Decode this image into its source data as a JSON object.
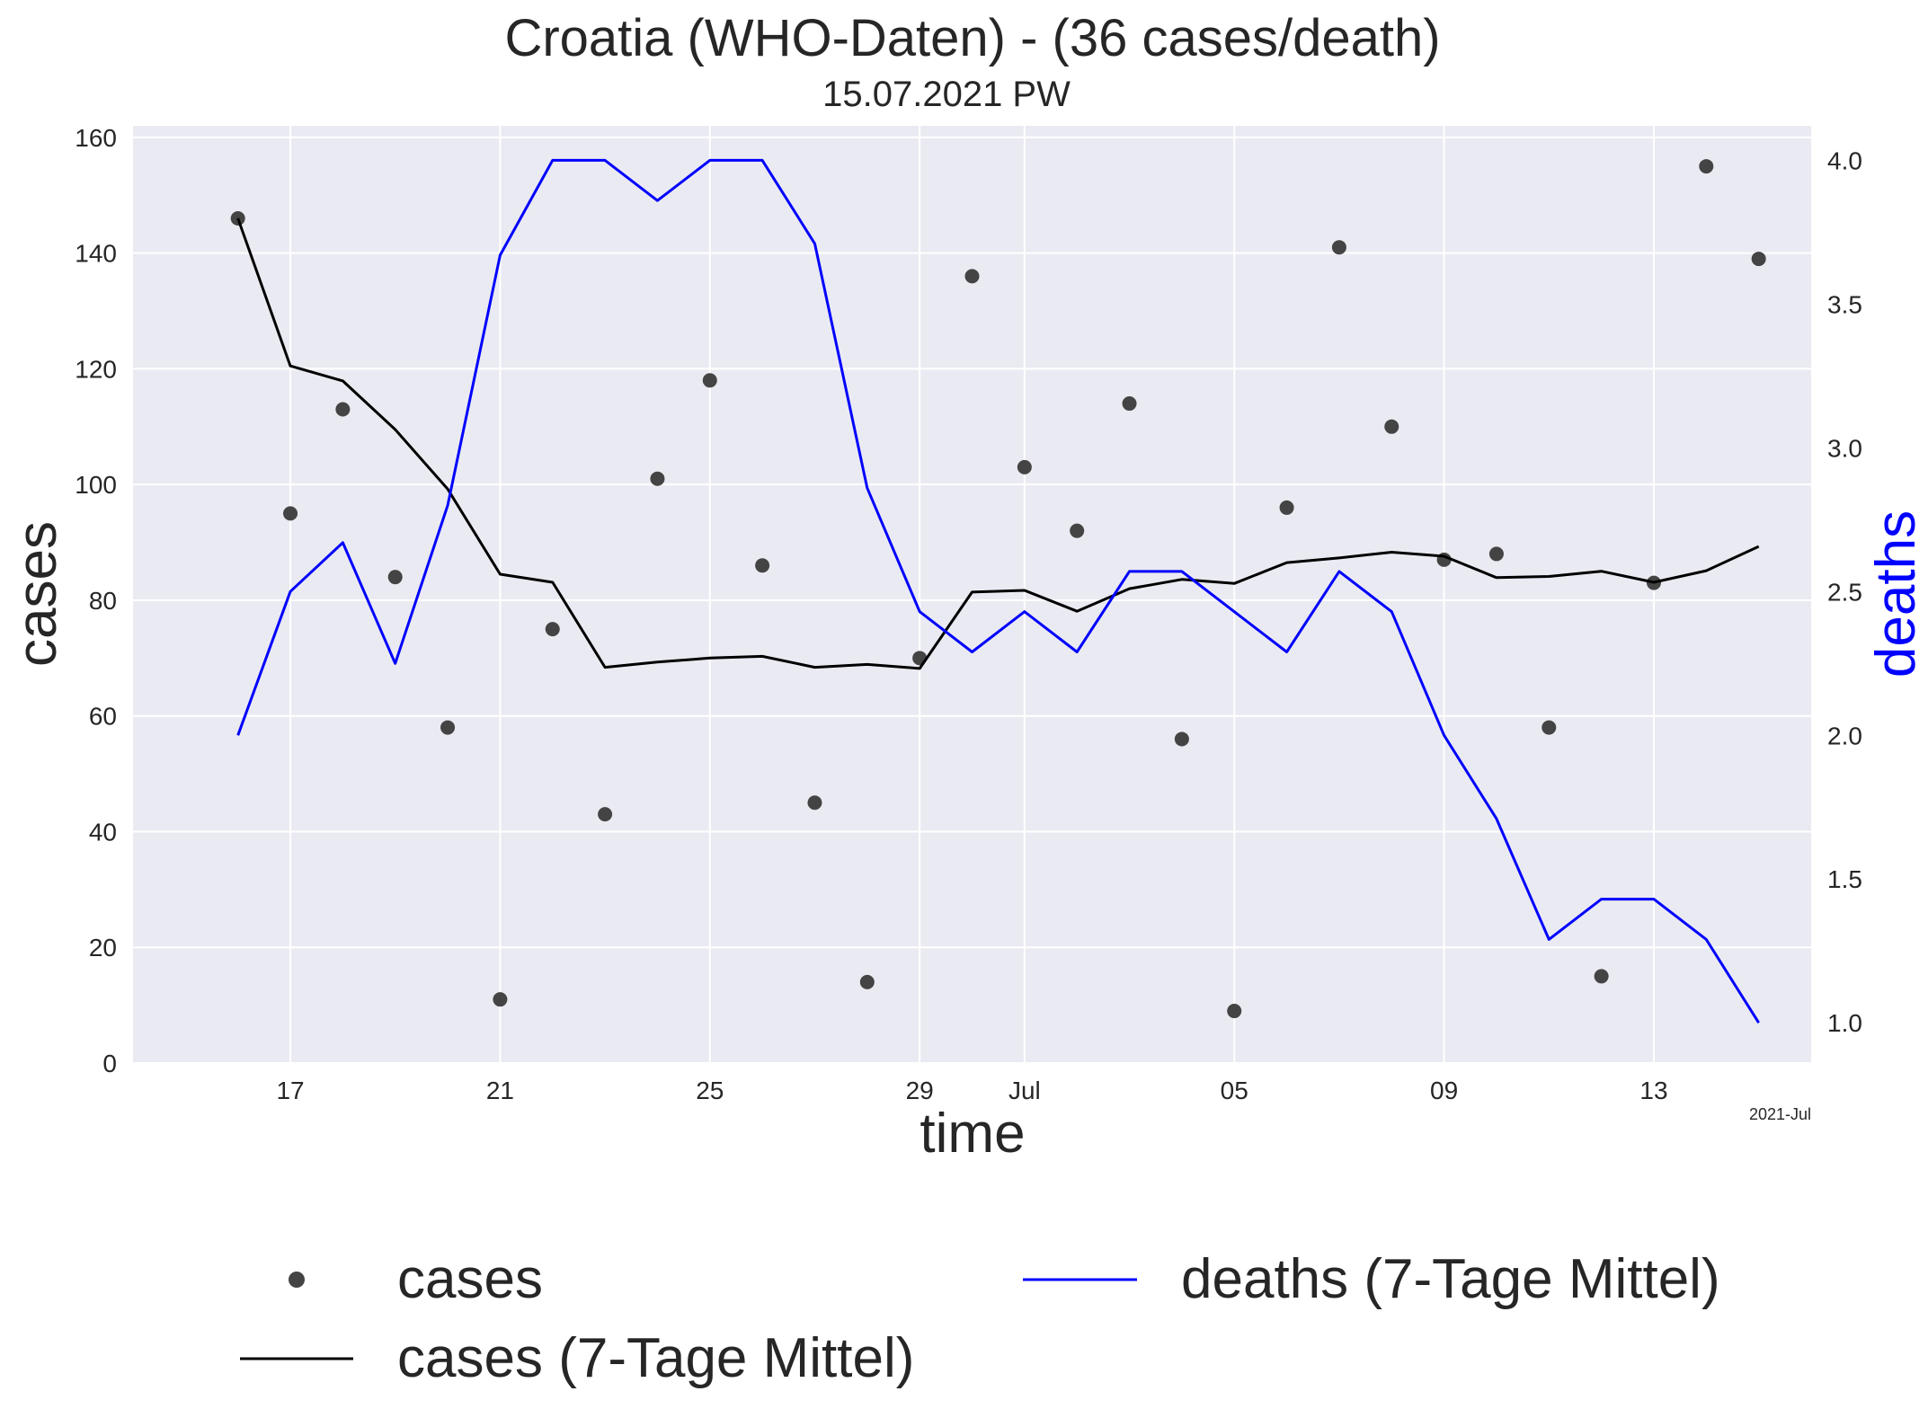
{
  "chart_data": {
    "type": "line",
    "title": "Croatia (WHO-Daten) - (36 cases/death)",
    "subtitle": "15.07.2021 PW",
    "xlabel": "time",
    "ylabel_left": "cases",
    "ylabel_right": "deaths",
    "x_offset_label": "2021-Jul",
    "x_tick_labels": [
      "17",
      "21",
      "25",
      "29",
      "Jul",
      "05",
      "09",
      "13"
    ],
    "x_tick_dates": [
      "2021-06-17",
      "2021-06-21",
      "2021-06-25",
      "2021-06-29",
      "2021-07-01",
      "2021-07-05",
      "2021-07-09",
      "2021-07-13"
    ],
    "xlim": [
      "2021-06-14",
      "2021-07-16"
    ],
    "ylim_left": [
      0,
      162
    ],
    "yticks_left": [
      0,
      20,
      40,
      60,
      80,
      100,
      120,
      140,
      160
    ],
    "ylim_right": [
      0.86,
      4.12
    ],
    "yticks_right": [
      "1.0",
      "1.5",
      "2.0",
      "2.5",
      "3.0",
      "3.5",
      "4.0"
    ],
    "grid": true,
    "legend_placement": "below",
    "dates": [
      "2021-06-16",
      "2021-06-17",
      "2021-06-18",
      "2021-06-19",
      "2021-06-20",
      "2021-06-21",
      "2021-06-22",
      "2021-06-23",
      "2021-06-24",
      "2021-06-25",
      "2021-06-26",
      "2021-06-27",
      "2021-06-28",
      "2021-06-29",
      "2021-06-30",
      "2021-07-01",
      "2021-07-02",
      "2021-07-03",
      "2021-07-04",
      "2021-07-05",
      "2021-07-06",
      "2021-07-07",
      "2021-07-08",
      "2021-07-09",
      "2021-07-10",
      "2021-07-11",
      "2021-07-12",
      "2021-07-13",
      "2021-07-14",
      "2021-07-15"
    ],
    "series": [
      {
        "name": "cases",
        "style": "scatter",
        "color": "#444444",
        "axis": "left",
        "values": [
          146,
          95,
          113,
          84,
          58,
          11,
          75,
          43,
          101,
          118,
          86,
          45,
          14,
          70,
          136,
          103,
          92,
          114,
          56,
          9,
          96,
          141,
          110,
          87,
          88,
          58,
          15,
          83,
          155,
          139
        ]
      },
      {
        "name": "cases (7-Tage Mittel)",
        "style": "line",
        "color": "#000000",
        "axis": "left",
        "values": [
          146,
          120.5,
          117.9,
          109.5,
          99.2,
          84.5,
          83.1,
          68.4,
          69.3,
          70.0,
          70.3,
          68.4,
          68.9,
          68.2,
          81.4,
          81.7,
          78.1,
          82.0,
          83.6,
          82.9,
          86.5,
          87.3,
          88.3,
          87.6,
          83.9,
          84.1,
          85.0,
          83.1,
          85.1,
          89.3
        ]
      },
      {
        "name": "deaths (7-Tage Mittel)",
        "style": "line",
        "color": "#0000ff",
        "axis": "right",
        "values": [
          2.0,
          2.5,
          2.67,
          2.25,
          2.8,
          3.67,
          4.0,
          4.0,
          3.86,
          4.0,
          4.0,
          3.71,
          2.86,
          2.43,
          2.29,
          2.43,
          2.29,
          2.57,
          2.57,
          2.43,
          2.29,
          2.57,
          2.43,
          2.0,
          1.71,
          1.29,
          1.43,
          1.43,
          1.29,
          1.0
        ]
      }
    ]
  }
}
